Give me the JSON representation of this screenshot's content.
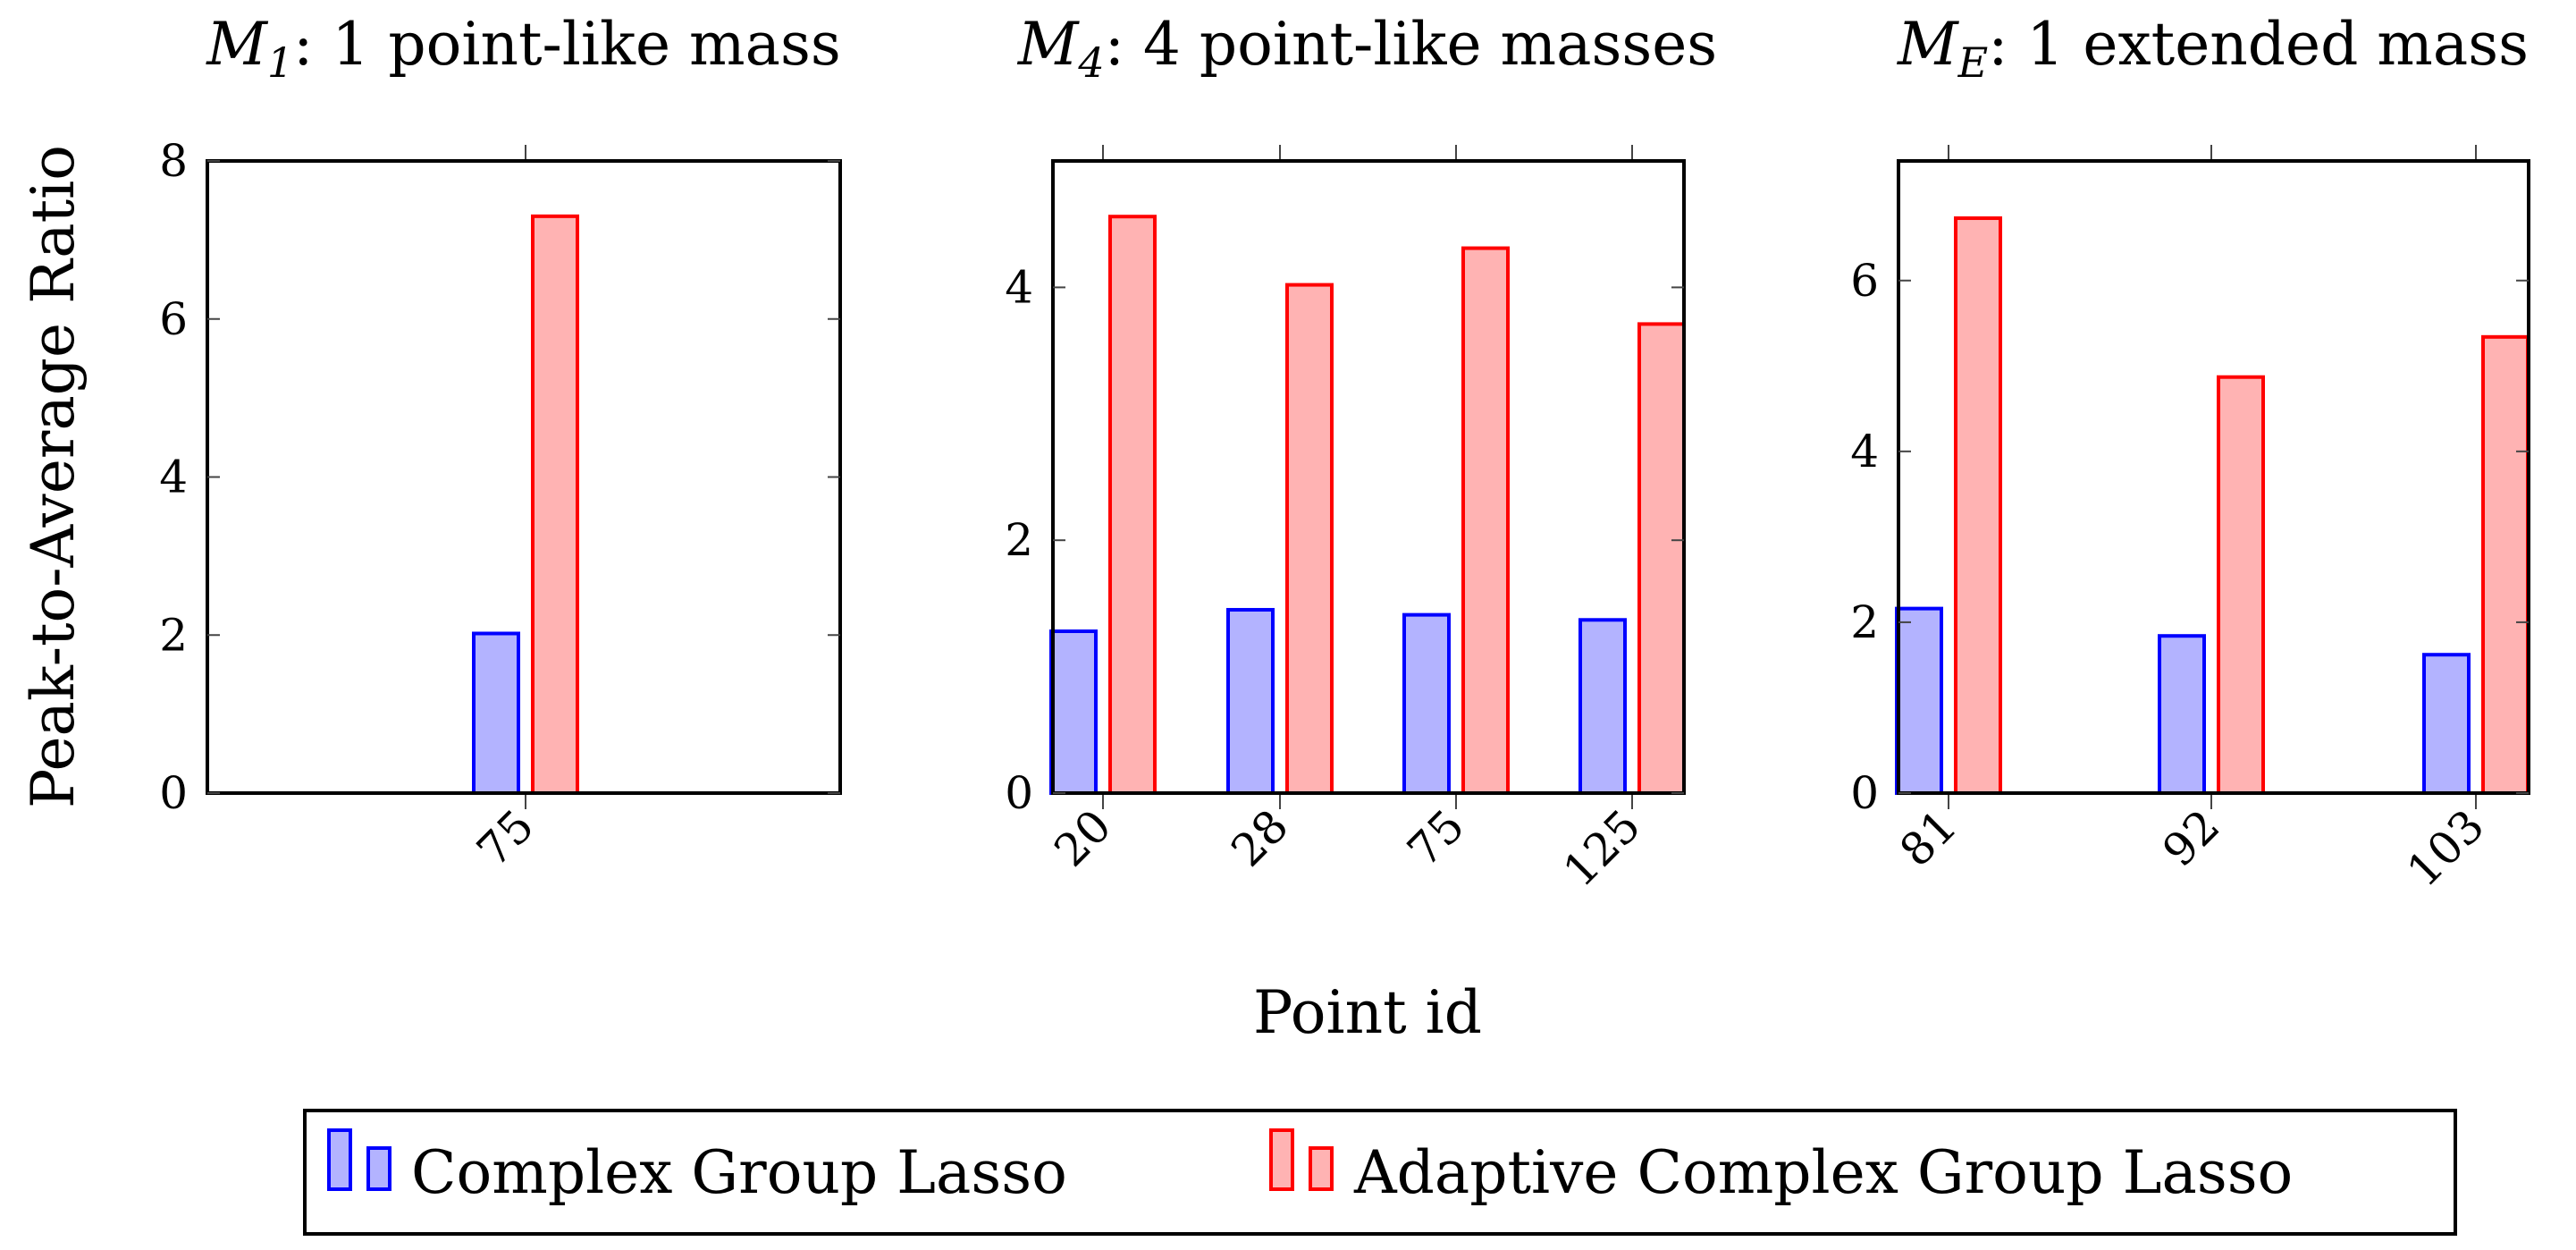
{
  "chart_data": [
    {
      "type": "bar",
      "title_var": "M",
      "title_sub": "1",
      "title_rest": ": 1 point-like mass",
      "categories": [
        "75"
      ],
      "series": [
        {
          "name": "Complex Group Lasso",
          "values": [
            2.02
          ]
        },
        {
          "name": "Adaptive Complex Group Lasso",
          "values": [
            7.3
          ]
        }
      ],
      "ylim": [
        0,
        8
      ],
      "yticks": [
        "0",
        "2",
        "4",
        "6",
        "8"
      ],
      "ylabel": "Peak-to-Average Ratio",
      "xlabel": "",
      "grid": false
    },
    {
      "type": "bar",
      "title_var": "M",
      "title_sub": "4",
      "title_rest": ": 4 point-like masses",
      "categories": [
        "20",
        "28",
        "75",
        "125"
      ],
      "series": [
        {
          "name": "Complex Group Lasso",
          "values": [
            1.28,
            1.45,
            1.41,
            1.37
          ]
        },
        {
          "name": "Adaptive Complex Group Lasso",
          "values": [
            4.56,
            4.02,
            4.31,
            3.71
          ]
        }
      ],
      "ylim": [
        0,
        5
      ],
      "yticks": [
        "0",
        "2",
        "4"
      ],
      "ylabel": "",
      "xlabel": "Point id",
      "grid": false
    },
    {
      "type": "bar",
      "title_var": "M",
      "title_sub": "E",
      "title_rest": ": 1 extended mass",
      "categories": [
        "81",
        "92",
        "103"
      ],
      "series": [
        {
          "name": "Complex Group Lasso",
          "values": [
            2.16,
            1.84,
            1.62
          ]
        },
        {
          "name": "Adaptive Complex Group Lasso",
          "values": [
            6.73,
            4.87,
            5.34
          ]
        }
      ],
      "ylim": [
        0,
        7.4
      ],
      "yticks": [
        "0",
        "2",
        "4",
        "6"
      ],
      "ylabel": "",
      "xlabel": "",
      "grid": false
    }
  ],
  "legend": {
    "placement": "bottom",
    "items": [
      {
        "label": "Complex Group Lasso",
        "fill": "#b3b3ff",
        "stroke": "#0000ff"
      },
      {
        "label": "Adaptive Complex Group Lasso",
        "fill": "#ffb3b3",
        "stroke": "#ff0000"
      }
    ]
  },
  "colors": {
    "series_fill": [
      "#b3b3ff",
      "#ffb3b3"
    ],
    "series_stroke": [
      "#0000ff",
      "#ff0000"
    ],
    "axis": "#000000"
  }
}
